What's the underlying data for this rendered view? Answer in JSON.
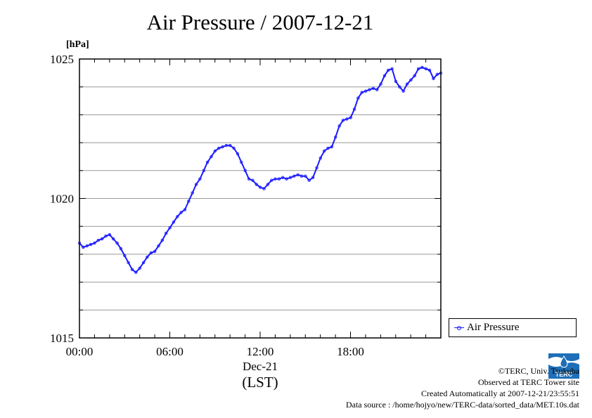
{
  "chart_data": {
    "type": "line",
    "title": "Air Pressure / 2007-12-21",
    "ylabel": "[hPa]",
    "xlabel": "(LST)",
    "date_label": "Dec-21",
    "ylim": [
      1015,
      1025
    ],
    "xlim": [
      0,
      23.99
    ],
    "y_major_ticks": [
      "1015",
      "1020",
      "1025"
    ],
    "x_tick_labels": [
      "00:00",
      "06:00",
      "12:00",
      "18:00"
    ],
    "grid": true,
    "legend_position": "right",
    "series": [
      {
        "name": "Air Pressure",
        "color": "#1a1aff",
        "x": [
          0,
          0.25,
          0.5,
          0.75,
          1,
          1.25,
          1.5,
          1.75,
          2,
          2.25,
          2.5,
          2.75,
          3,
          3.25,
          3.5,
          3.75,
          4,
          4.25,
          4.5,
          4.75,
          5,
          5.25,
          5.5,
          5.75,
          6,
          6.25,
          6.5,
          6.75,
          7,
          7.25,
          7.5,
          7.75,
          8,
          8.25,
          8.5,
          8.75,
          9,
          9.25,
          9.5,
          9.75,
          10,
          10.25,
          10.5,
          10.75,
          11,
          11.25,
          11.5,
          11.75,
          12,
          12.25,
          12.5,
          12.75,
          13,
          13.25,
          13.5,
          13.75,
          14,
          14.25,
          14.5,
          14.75,
          15,
          15.25,
          15.5,
          15.75,
          16,
          16.25,
          16.5,
          16.75,
          17,
          17.25,
          17.5,
          17.75,
          18,
          18.25,
          18.5,
          18.75,
          19,
          19.25,
          19.5,
          19.75,
          20,
          20.25,
          20.5,
          20.75,
          21,
          21.25,
          21.5,
          21.75,
          22,
          22.25,
          22.5,
          22.75,
          23,
          23.25,
          23.5,
          23.75,
          23.99
        ],
        "y": [
          1018.4,
          1018.25,
          1018.3,
          1018.35,
          1018.4,
          1018.5,
          1018.55,
          1018.65,
          1018.7,
          1018.55,
          1018.4,
          1018.2,
          1017.95,
          1017.7,
          1017.45,
          1017.35,
          1017.5,
          1017.7,
          1017.9,
          1018.05,
          1018.1,
          1018.3,
          1018.5,
          1018.75,
          1018.95,
          1019.15,
          1019.35,
          1019.5,
          1019.6,
          1019.9,
          1020.2,
          1020.5,
          1020.7,
          1021.0,
          1021.3,
          1021.5,
          1021.7,
          1021.8,
          1021.85,
          1021.9,
          1021.9,
          1021.8,
          1021.6,
          1021.3,
          1021.0,
          1020.7,
          1020.65,
          1020.5,
          1020.4,
          1020.35,
          1020.5,
          1020.65,
          1020.7,
          1020.7,
          1020.75,
          1020.7,
          1020.75,
          1020.8,
          1020.85,
          1020.8,
          1020.8,
          1020.65,
          1020.75,
          1021.1,
          1021.45,
          1021.7,
          1021.8,
          1021.85,
          1022.2,
          1022.6,
          1022.8,
          1022.85,
          1022.9,
          1023.2,
          1023.6,
          1023.8,
          1023.85,
          1023.9,
          1023.95,
          1023.9,
          1024.1,
          1024.4,
          1024.6,
          1024.65,
          1024.2,
          1024.0,
          1023.85,
          1024.1,
          1024.25,
          1024.4,
          1024.65,
          1024.7,
          1024.65,
          1024.6,
          1024.3,
          1024.45,
          1024.5
        ]
      }
    ]
  },
  "legend": {
    "label": "Air Pressure"
  },
  "credits": {
    "line1": "©TERC, Univ. Tsukuba",
    "line2": "Observed at TERC Tower site",
    "line3": "Created Automatically at 2007-12-21/23:55:51",
    "line4": "Data source : /home/hojyo/new/TERC-data/sorted_data/MET.10s.dat"
  },
  "logo_text": "TERC"
}
